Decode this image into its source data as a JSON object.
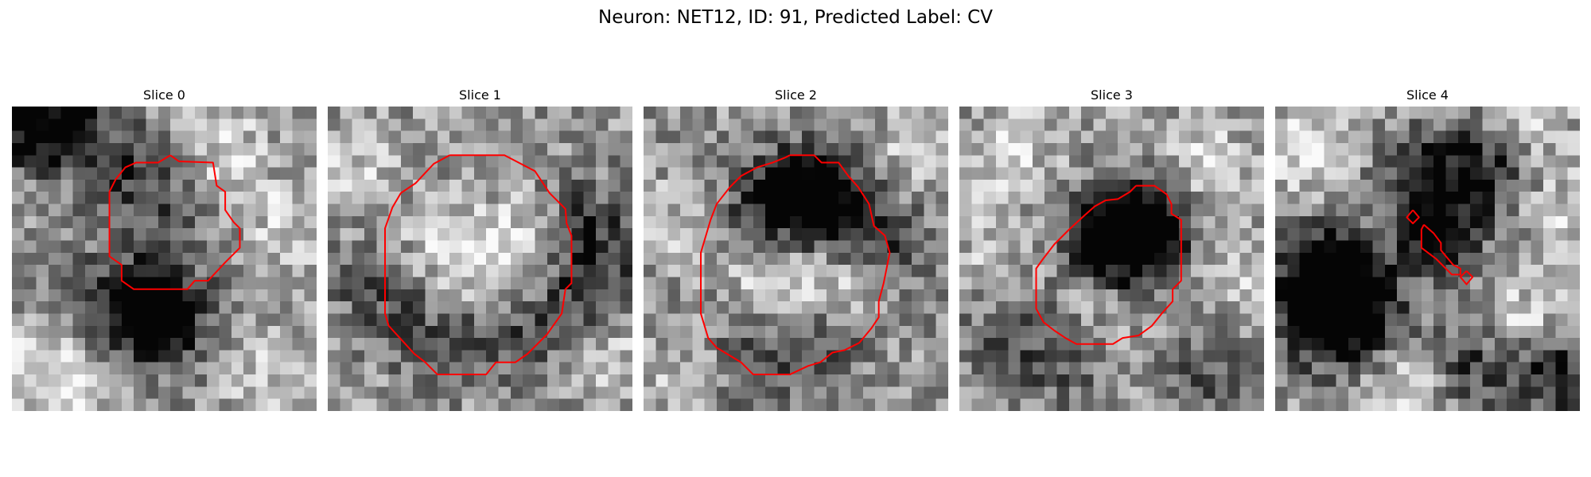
{
  "figure": {
    "title": "Neuron: NET12, ID: 91, Predicted Label: CV"
  },
  "grid_size": 25,
  "contour_color": "#ff0000",
  "colormap": "gray",
  "slices": [
    {
      "title": "Slice 0",
      "contours": [
        [
          [
            13,
            4
          ],
          [
            13.7,
            4.5
          ],
          [
            16.5,
            4.6
          ],
          [
            16.8,
            6.5
          ],
          [
            17.5,
            7
          ],
          [
            17.5,
            8.5
          ],
          [
            18.2,
            9.5
          ],
          [
            18.7,
            10
          ],
          [
            18.7,
            11.6
          ],
          [
            17.5,
            12.8
          ],
          [
            16.1,
            14.3
          ],
          [
            15,
            14.3
          ],
          [
            14.4,
            15
          ],
          [
            10,
            15
          ],
          [
            9,
            14.3
          ],
          [
            9,
            13
          ],
          [
            8,
            12.3
          ],
          [
            8,
            7
          ],
          [
            8.5,
            6
          ],
          [
            9.3,
            5
          ],
          [
            10.2,
            4.6
          ],
          [
            12,
            4.6
          ],
          [
            13,
            4
          ]
        ]
      ],
      "dark_spots": [
        [
          1,
          1,
          1.4
        ],
        [
          4,
          0.5,
          1.0
        ],
        [
          9,
          4.8,
          1.0
        ],
        [
          11,
          17,
          1.3
        ],
        [
          12,
          16.6,
          1.2
        ],
        [
          6,
          15,
          0.9
        ],
        [
          12,
          10,
          0.6
        ]
      ],
      "bright_spots": [
        [
          17,
          3,
          0.9
        ],
        [
          22,
          9,
          0.8
        ],
        [
          4,
          23,
          1.0
        ],
        [
          2,
          20,
          0.8
        ],
        [
          20,
          22,
          0.7
        ]
      ]
    },
    {
      "title": "Slice 1",
      "contours": [
        [
          [
            10,
            4
          ],
          [
            14.5,
            4
          ],
          [
            17,
            5.3
          ],
          [
            18.2,
            7.1
          ],
          [
            19.5,
            8.4
          ],
          [
            19.6,
            9.6
          ],
          [
            20,
            10.6
          ],
          [
            20,
            14.5
          ],
          [
            19.5,
            15
          ],
          [
            19.2,
            17
          ],
          [
            18,
            18.7
          ],
          [
            16.4,
            20.3
          ],
          [
            15.4,
            21
          ],
          [
            13.8,
            21
          ],
          [
            13,
            22
          ],
          [
            9,
            22
          ],
          [
            8,
            21
          ],
          [
            7.1,
            20.3
          ],
          [
            6,
            19.1
          ],
          [
            5,
            18
          ],
          [
            4.7,
            17
          ],
          [
            4.7,
            10
          ],
          [
            5.3,
            8.3
          ],
          [
            6,
            7.1
          ],
          [
            7.2,
            6.3
          ],
          [
            8.7,
            4.7
          ],
          [
            10,
            4
          ]
        ]
      ],
      "dark_spots": [
        [
          20.3,
          15,
          0.8
        ],
        [
          8.5,
          18.7,
          0.7
        ],
        [
          15,
          18.7,
          0.7
        ],
        [
          20.5,
          8.5,
          0.7
        ],
        [
          3.5,
          15,
          0.7
        ],
        [
          22,
          12,
          0.6
        ]
      ],
      "bright_spots": [
        [
          12,
          12,
          1.0
        ],
        [
          16,
          10,
          0.8
        ],
        [
          9,
          11,
          0.7
        ],
        [
          23,
          20,
          0.7
        ],
        [
          2,
          4,
          0.7
        ]
      ]
    },
    {
      "title": "Slice 2",
      "contours": [
        [
          [
            12,
            4
          ],
          [
            14,
            4
          ],
          [
            14.6,
            4.6
          ],
          [
            16,
            4.6
          ],
          [
            16.8,
            5.7
          ],
          [
            17.6,
            6.6
          ],
          [
            18.5,
            8
          ],
          [
            18.9,
            9.8
          ],
          [
            19.8,
            10.6
          ],
          [
            20.2,
            12
          ],
          [
            20,
            13
          ],
          [
            19.7,
            14.5
          ],
          [
            19.3,
            16
          ],
          [
            19.3,
            17.3
          ],
          [
            18.7,
            18.2
          ],
          [
            17.7,
            19.4
          ],
          [
            16.5,
            20
          ],
          [
            15.5,
            20.2
          ],
          [
            14.5,
            21
          ],
          [
            13.5,
            21.3
          ],
          [
            12,
            22
          ],
          [
            9,
            22
          ],
          [
            8,
            21
          ],
          [
            7,
            20.4
          ],
          [
            6,
            19.8
          ],
          [
            5.3,
            19
          ],
          [
            4.7,
            17
          ],
          [
            4.7,
            12
          ],
          [
            5.5,
            9.3
          ],
          [
            6,
            8
          ],
          [
            7.1,
            6.6
          ],
          [
            8,
            5.7
          ],
          [
            9.3,
            5
          ],
          [
            10.6,
            4.6
          ],
          [
            11.6,
            4.2
          ],
          [
            12,
            4
          ]
        ]
      ],
      "dark_spots": [
        [
          12,
          6.5,
          1.1
        ],
        [
          14,
          6.7,
          1.0
        ],
        [
          15.6,
          8.3,
          1.0
        ],
        [
          9.5,
          7.5,
          0.8
        ],
        [
          8.5,
          20.5,
          0.8
        ],
        [
          14,
          20,
          0.8
        ],
        [
          20.5,
          11,
          0.7
        ]
      ],
      "bright_spots": [
        [
          10,
          13,
          0.9
        ],
        [
          15,
          14,
          0.8
        ],
        [
          3,
          22,
          0.7
        ],
        [
          22,
          3,
          0.7
        ],
        [
          2,
          9,
          0.6
        ]
      ]
    },
    {
      "title": "Slice 3",
      "contours": [
        [
          [
            14.5,
            6.5
          ],
          [
            16,
            6.5
          ],
          [
            17,
            7.2
          ],
          [
            17.4,
            8
          ],
          [
            17.4,
            8.8
          ],
          [
            18.2,
            9.3
          ],
          [
            18.2,
            14.3
          ],
          [
            17.5,
            15
          ],
          [
            17.5,
            16
          ],
          [
            16.6,
            17
          ],
          [
            15.8,
            18
          ],
          [
            14.7,
            18.8
          ],
          [
            13.4,
            19
          ],
          [
            12.6,
            19.5
          ],
          [
            9.6,
            19.5
          ],
          [
            8.7,
            19
          ],
          [
            7.8,
            18.4
          ],
          [
            6.9,
            17.7
          ],
          [
            6.3,
            16.6
          ],
          [
            6.3,
            13.3
          ],
          [
            6.8,
            12.6
          ],
          [
            7.8,
            11.3
          ],
          [
            9,
            10.1
          ],
          [
            10.2,
            9
          ],
          [
            11.1,
            8.2
          ],
          [
            12,
            7.7
          ],
          [
            13,
            7.6
          ],
          [
            14,
            7
          ],
          [
            14.5,
            6.5
          ]
        ]
      ],
      "dark_spots": [
        [
          12.8,
          10.3,
          1.3
        ],
        [
          11.5,
          10.8,
          1.0
        ],
        [
          14,
          9.2,
          1.0
        ],
        [
          15.5,
          10.5,
          0.8
        ],
        [
          8,
          20,
          0.7
        ],
        [
          20,
          21,
          0.7
        ],
        [
          3,
          19,
          0.6
        ]
      ],
      "bright_spots": [
        [
          4,
          3,
          0.8
        ],
        [
          20,
          4,
          0.8
        ],
        [
          11,
          15,
          0.7
        ],
        [
          2,
          10,
          0.6
        ],
        [
          22,
          14,
          0.6
        ]
      ]
    },
    {
      "title": "Slice 4",
      "contours": [
        [
          [
            11.3,
            8.5
          ],
          [
            11.8,
            9.1
          ],
          [
            11.3,
            9.6
          ],
          [
            10.8,
            9.1
          ],
          [
            11.3,
            8.5
          ]
        ],
        [
          [
            12.2,
            9.7
          ],
          [
            13,
            10.4
          ],
          [
            13.6,
            11.2
          ],
          [
            13.6,
            11.8
          ],
          [
            14.6,
            13
          ],
          [
            15.2,
            13.3
          ],
          [
            15.2,
            13.8
          ],
          [
            14.5,
            13.8
          ],
          [
            13.2,
            12.5
          ],
          [
            12,
            11.6
          ],
          [
            12,
            10.1
          ],
          [
            12.2,
            9.7
          ]
        ],
        [
          [
            15.7,
            13.5
          ],
          [
            16.2,
            14
          ],
          [
            15.7,
            14.6
          ],
          [
            15.2,
            14
          ],
          [
            15.7,
            13.5
          ]
        ]
      ],
      "dark_spots": [
        [
          4,
          13,
          2.2
        ],
        [
          6,
          16.5,
          1.8
        ],
        [
          3,
          17,
          1.4
        ],
        [
          13,
          10.5,
          1.2
        ],
        [
          12,
          5.5,
          1.3
        ],
        [
          17,
          4.5,
          1.2
        ],
        [
          22.5,
          21.5,
          1.3
        ],
        [
          15,
          21,
          1.0
        ]
      ],
      "bright_spots": [
        [
          2,
          3,
          1.2
        ],
        [
          20,
          1,
          1.0
        ],
        [
          11,
          23,
          1.1
        ],
        [
          20,
          17,
          0.9
        ],
        [
          23,
          8,
          0.8
        ]
      ]
    }
  ]
}
